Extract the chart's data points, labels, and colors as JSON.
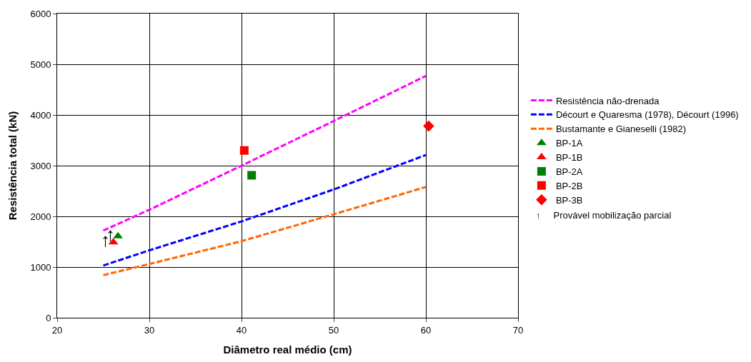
{
  "chart_data": {
    "type": "line",
    "xlabel": "Diâmetro real médio (cm)",
    "ylabel": "Resistência total (kN)",
    "xlim": [
      20,
      70
    ],
    "xticks": [
      20,
      30,
      40,
      50,
      60,
      70
    ],
    "ylim": [
      0,
      6000
    ],
    "yticks": [
      0,
      1000,
      2000,
      3000,
      4000,
      5000,
      6000
    ],
    "grid": true,
    "legend": "right",
    "series": [
      {
        "name": "Resistência não-drenada",
        "line_style": "dashed",
        "marker": "none",
        "color": "#ff00ff",
        "x": [
          25,
          30,
          40,
          50,
          60
        ],
        "values": [
          1720,
          2130,
          3000,
          3880,
          4770
        ]
      },
      {
        "name": "Décourt e Quaresma (1978), Décourt (1996)",
        "line_style": "dashed",
        "marker": "none",
        "color": "#0000ff",
        "x": [
          25,
          30,
          40,
          50,
          60
        ],
        "values": [
          1030,
          1330,
          1900,
          2530,
          3210
        ]
      },
      {
        "name": "Bustamante e Gianeselli (1982)",
        "line_style": "dashed",
        "marker": "none",
        "color": "#ff6600",
        "x": [
          25,
          30,
          40,
          50,
          60
        ],
        "values": [
          840,
          1060,
          1510,
          2040,
          2580
        ]
      },
      {
        "name": "BP-1A",
        "type": "scatter",
        "marker": "triangle",
        "color": "#008000",
        "x": [
          26.6
        ],
        "values": [
          1610
        ]
      },
      {
        "name": "BP-1B",
        "type": "scatter",
        "marker": "triangle",
        "color": "#ff0000",
        "x": [
          26.1
        ],
        "values": [
          1490
        ]
      },
      {
        "name": "BP-2A",
        "type": "scatter",
        "marker": "square",
        "color": "#008000",
        "x": [
          41.1
        ],
        "values": [
          2810
        ]
      },
      {
        "name": "BP-2B",
        "type": "scatter",
        "marker": "square",
        "color": "#ff0000",
        "x": [
          40.3
        ],
        "values": [
          3300
        ]
      },
      {
        "name": "BP-3B",
        "type": "scatter",
        "marker": "diamond",
        "color": "#ff0000",
        "x": [
          60.3
        ],
        "values": [
          3780
        ]
      }
    ],
    "annotations": [
      {
        "text": "↑",
        "x": 26.1,
        "y": 1490
      },
      {
        "text": "↑",
        "x": 26.6,
        "y": 1610
      },
      "↑     Provável mobilização parcial"
    ]
  }
}
